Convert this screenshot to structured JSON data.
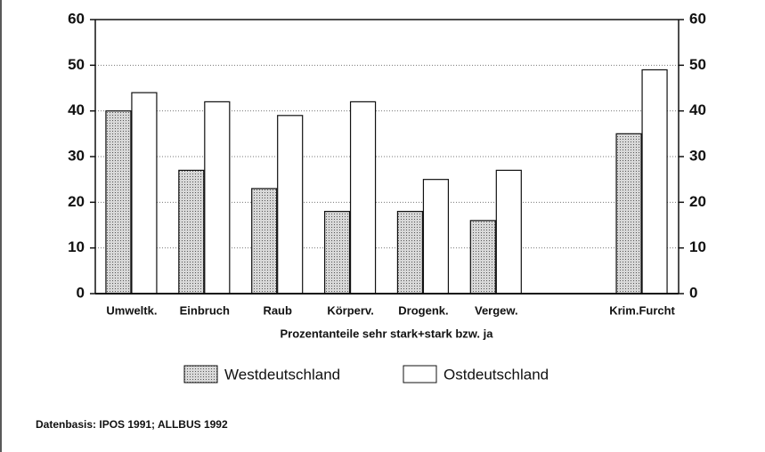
{
  "chart_data": {
    "type": "bar",
    "categories": [
      "Umweltk.",
      "Einbruch",
      "Raub",
      "Körperv.",
      "Drogenk.",
      "Vergew.",
      null,
      "Krim.Furcht"
    ],
    "series": [
      {
        "name": "Westdeutschland",
        "color": "#c4c4c4",
        "values": [
          40,
          27,
          23,
          18,
          18,
          16,
          null,
          35
        ]
      },
      {
        "name": "Ostdeutschland",
        "color": "#ffffff",
        "values": [
          44,
          42,
          39,
          42,
          25,
          27,
          null,
          49
        ]
      }
    ],
    "x_label": "Prozentanteile sehr stark+stark bzw. ja",
    "note": "Datenbasis: IPOS 1991; ALLBUS 1992",
    "ylim": [
      0,
      60
    ],
    "yticks": [
      0,
      10,
      20,
      30,
      40,
      50,
      60
    ],
    "y2lim": [
      0,
      60
    ],
    "y2ticks": [
      0,
      10,
      20,
      30,
      40,
      50,
      60
    ],
    "grid": true
  }
}
